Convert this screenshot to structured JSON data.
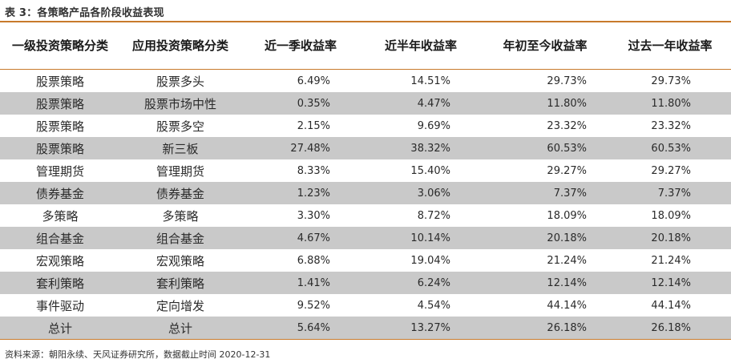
{
  "caption": "表 3：各策略产品各阶段收益表现",
  "headers": [
    "一级投资策略分类",
    "应用投资策略分类",
    "近一季收益率",
    "近半年收益率",
    "年初至今收益率",
    "过去一年收益率"
  ],
  "rows": [
    [
      "股票策略",
      "股票多头",
      "6.49%",
      "14.51%",
      "29.73%",
      "29.73%"
    ],
    [
      "股票策略",
      "股票市场中性",
      "0.35%",
      "4.47%",
      "11.80%",
      "11.80%"
    ],
    [
      "股票策略",
      "股票多空",
      "2.15%",
      "9.69%",
      "23.32%",
      "23.32%"
    ],
    [
      "股票策略",
      "新三板",
      "27.48%",
      "38.32%",
      "60.53%",
      "60.53%"
    ],
    [
      "管理期货",
      "管理期货",
      "8.33%",
      "15.40%",
      "29.27%",
      "29.27%"
    ],
    [
      "债券基金",
      "债券基金",
      "1.23%",
      "3.06%",
      "7.37%",
      "7.37%"
    ],
    [
      "多策略",
      "多策略",
      "3.30%",
      "8.72%",
      "18.09%",
      "18.09%"
    ],
    [
      "组合基金",
      "组合基金",
      "4.67%",
      "10.14%",
      "20.18%",
      "20.18%"
    ],
    [
      "宏观策略",
      "宏观策略",
      "6.88%",
      "19.04%",
      "21.24%",
      "21.24%"
    ],
    [
      "套利策略",
      "套利策略",
      "1.41%",
      "6.24%",
      "12.14%",
      "12.14%"
    ],
    [
      "事件驱动",
      "定向增发",
      "9.52%",
      "4.54%",
      "44.14%",
      "44.14%"
    ],
    [
      "总计",
      "总计",
      "5.64%",
      "13.27%",
      "26.18%",
      "26.18%"
    ]
  ],
  "source": "资料来源：朝阳永续、天风证券研究所，数据截止时间 2020-12-31",
  "colors": {
    "accent_rule": "#c87a2c",
    "row_shade": "#c9c9c9"
  }
}
